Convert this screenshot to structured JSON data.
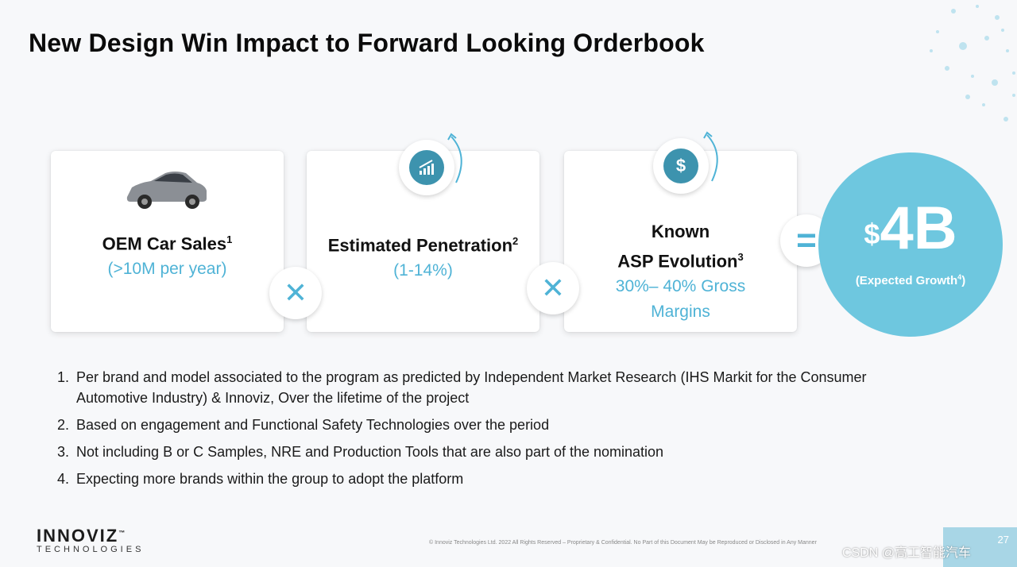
{
  "slide": {
    "title": "New Design Win Impact to Forward Looking Orderbook"
  },
  "cards": [
    {
      "title": "OEM Car Sales",
      "footnote": "1",
      "detail": "(>10M per year)",
      "icon": "car-image"
    },
    {
      "title": "Estimated Penetration",
      "footnote": "2",
      "detail": "(1-14%)",
      "icon": "growth-chart-icon"
    },
    {
      "title_line1": "Known",
      "title_line2": "ASP Evolution",
      "footnote": "3",
      "detail_line1": "30%– 40% Gross",
      "detail_line2": "Margins",
      "icon": "dollar-icon",
      "icon_glyph": "$"
    }
  ],
  "operators": {
    "multiply": "✕",
    "equals": "="
  },
  "result": {
    "currency": "$",
    "value": "4B",
    "label": "(Expected Growth",
    "label_footnote": "4",
    "label_close": ")"
  },
  "notes": [
    {
      "num": "1.",
      "text": "Per brand and model associated to the program as predicted by Independent Market Research (IHS Markit for the Consumer Automotive Industry) & Innoviz, Over the lifetime of the project"
    },
    {
      "num": "2.",
      "text": "Based on engagement and Functional Safety Technologies over the period"
    },
    {
      "num": "3.",
      "text": "Not including B or C Samples, NRE and Production Tools that are also part of the nomination"
    },
    {
      "num": "4.",
      "text": "Expecting more brands within the group to adopt the platform"
    }
  ],
  "logo": {
    "name": "INNOVIZ",
    "tagline": "TECHNOLOGIES",
    "tm": "™"
  },
  "footer": "© Innoviz Technologies Ltd. 2022 All Rights Reserved – Proprietary & Confidential. No Part of this Document May be Reproduced or Disclosed in Any Manner",
  "page_number": "27",
  "watermark": "CSDN @高工智能汽车",
  "colors": {
    "accent": "#4fb3d6",
    "icon_fill": "#3d93ae",
    "result_circle": "#6ec7df"
  }
}
